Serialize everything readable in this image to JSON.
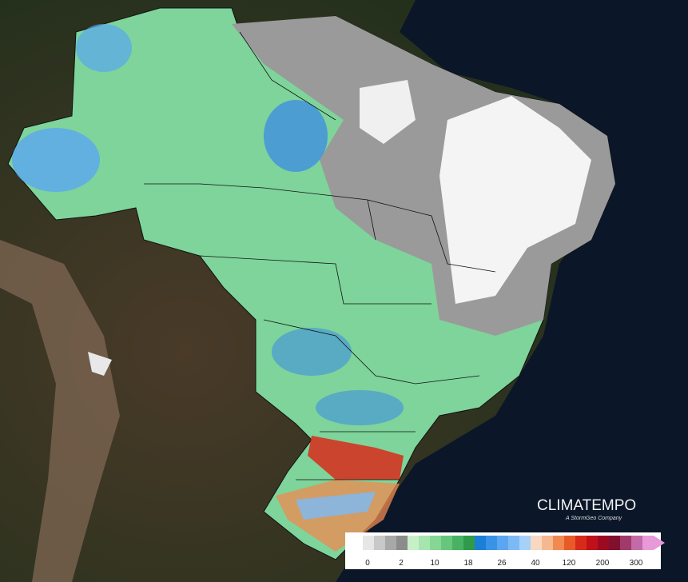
{
  "brand": {
    "name": "CLIMATEMPO",
    "tagline": "A StormGeo Company"
  },
  "legend": {
    "labels": [
      0,
      2,
      10,
      18,
      26,
      40,
      120,
      200,
      300
    ],
    "colors": [
      "#ffffff",
      "#e6e6e6",
      "#c8c8c8",
      "#a8a8a8",
      "#8c8c8c",
      "#c8f0c8",
      "#a6e4b0",
      "#86d696",
      "#66c67c",
      "#48b262",
      "#2e9a4a",
      "#1a7fd6",
      "#3a92e6",
      "#5aa6f0",
      "#7cbaf6",
      "#a6d2fa",
      "#f8d8c0",
      "#f6b890",
      "#f08a50",
      "#e85a28",
      "#d82a1a",
      "#c0101a",
      "#9c0a22",
      "#801030",
      "#a03a6a",
      "#c46aa6",
      "#e69ad8"
    ]
  }
}
